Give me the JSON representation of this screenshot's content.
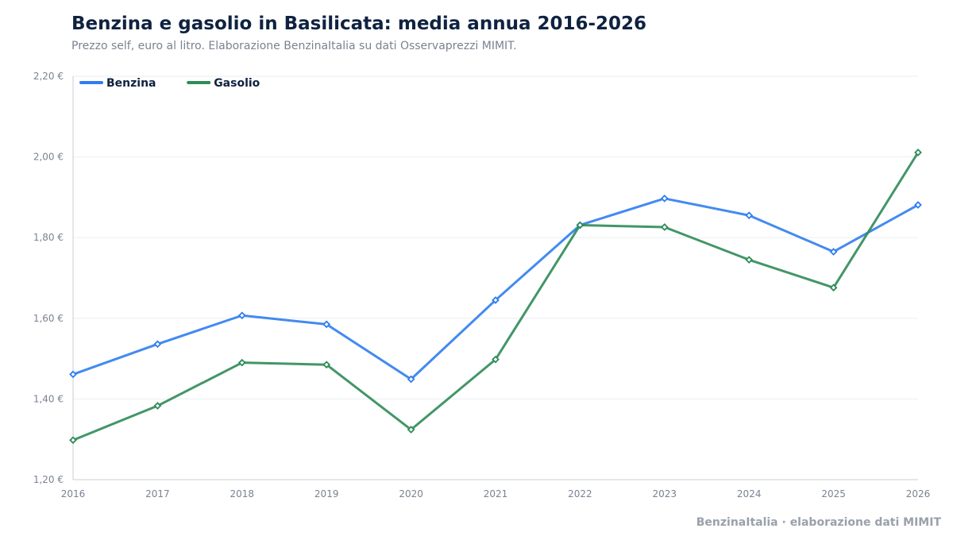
{
  "header": {
    "title": "Benzina e gasolio in Basilicata: media annua 2016-2026",
    "subtitle": "Prezzo self, euro al litro. Elaborazione BenzinaItalia su dati Osservaprezzi MIMIT."
  },
  "footer": {
    "credit": "BenzinaItalia · elaborazione dati MIMIT"
  },
  "chart_data": {
    "type": "line",
    "x": [
      "2016",
      "2017",
      "2018",
      "2019",
      "2020",
      "2021",
      "2022",
      "2023",
      "2024",
      "2025",
      "2026"
    ],
    "series": [
      {
        "name": "Benzina",
        "color": "#2f7df0",
        "values": [
          1.461,
          1.536,
          1.607,
          1.585,
          1.449,
          1.645,
          1.831,
          1.897,
          1.855,
          1.765,
          1.881
        ]
      },
      {
        "name": "Gasolio",
        "color": "#2e8b57",
        "values": [
          1.298,
          1.383,
          1.49,
          1.485,
          1.324,
          1.498,
          1.831,
          1.826,
          1.745,
          1.676,
          2.011
        ]
      }
    ],
    "ylim": [
      1.2,
      2.2
    ],
    "yticks": [
      {
        "value": 1.2,
        "label": "1,20 €"
      },
      {
        "value": 1.4,
        "label": "1,40 €"
      },
      {
        "value": 1.6,
        "label": "1,60 €"
      },
      {
        "value": 1.8,
        "label": "1,80 €"
      },
      {
        "value": 2.0,
        "label": "2,00 €"
      },
      {
        "value": 2.2,
        "label": "2,20 €"
      }
    ],
    "grid": true,
    "legend": "top-left"
  }
}
